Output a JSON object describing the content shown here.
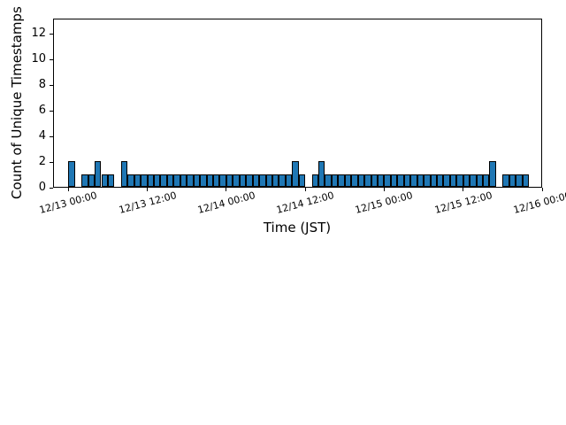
{
  "figure": {
    "background": "#ffffff",
    "text_color": "#000000"
  },
  "chart_data": {
    "type": "bar",
    "title": "",
    "xlabel": "Time (JST)",
    "ylabel": "Count of Unique Timestamps",
    "bar_fill": "#1f77b4",
    "bar_edge": "#000000",
    "grid": false,
    "legend": null,
    "ylim": [
      0,
      13.2
    ],
    "yticks": [
      0,
      2,
      4,
      6,
      8,
      10,
      12
    ],
    "bins": {
      "start": "12/13 00:00",
      "end": "12/16 00:00",
      "interval_hours": 1,
      "count": 72
    },
    "xtick_hours": [
      0,
      12,
      24,
      36,
      48,
      60,
      72
    ],
    "xtick_labels": [
      "12/13 00:00",
      "12/13 12:00",
      "12/14 00:00",
      "12/14 12:00",
      "12/15 00:00",
      "12/15 12:00",
      "12/16 00:00"
    ],
    "xtick_rotation_deg": 15,
    "values": [
      2,
      0,
      1,
      1,
      2,
      1,
      1,
      0,
      2,
      1,
      1,
      1,
      1,
      1,
      1,
      1,
      1,
      1,
      1,
      1,
      1,
      1,
      1,
      1,
      1,
      1,
      1,
      1,
      1,
      1,
      1,
      1,
      1,
      1,
      2,
      1,
      0,
      1,
      2,
      1,
      1,
      1,
      1,
      1,
      1,
      1,
      1,
      1,
      1,
      1,
      1,
      1,
      1,
      1,
      1,
      1,
      1,
      1,
      1,
      1,
      1,
      1,
      1,
      1,
      2,
      0,
      1,
      1,
      1,
      1,
      0,
      0
    ]
  }
}
